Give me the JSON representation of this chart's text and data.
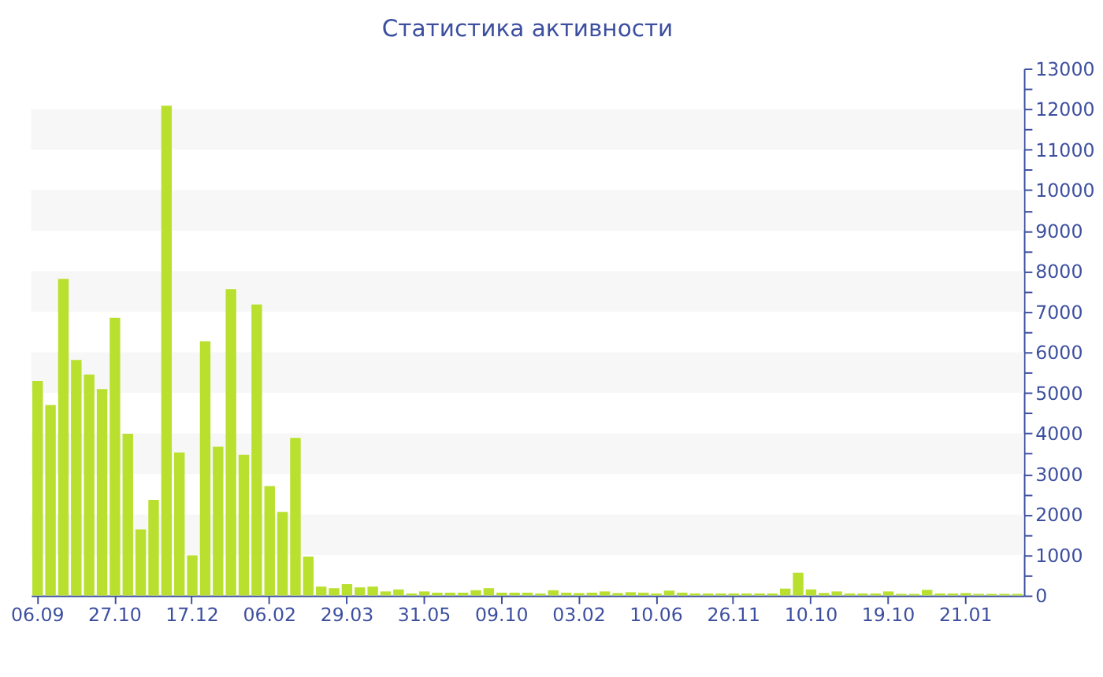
{
  "chart_data": {
    "type": "bar",
    "title": "Статистика активности",
    "categories": [
      "06.09",
      null,
      null,
      null,
      null,
      null,
      "27.10",
      null,
      null,
      null,
      null,
      null,
      "17.12",
      null,
      null,
      null,
      null,
      null,
      "06.02",
      null,
      null,
      null,
      null,
      null,
      "29.03",
      null,
      null,
      null,
      null,
      null,
      "31.05",
      null,
      null,
      null,
      null,
      null,
      "09.10",
      null,
      null,
      null,
      null,
      null,
      "03.02",
      null,
      null,
      null,
      null,
      null,
      "10.06",
      null,
      null,
      null,
      null,
      null,
      "26.11",
      null,
      null,
      null,
      null,
      null,
      "10.10",
      null,
      null,
      null,
      null,
      null,
      "19.10",
      null,
      null,
      null,
      null,
      null,
      "21.01",
      null,
      null,
      null,
      null
    ],
    "values": [
      5290,
      4700,
      7810,
      5810,
      5450,
      5090,
      6850,
      3990,
      1630,
      2360,
      12080,
      3530,
      990,
      6270,
      3670,
      7560,
      3470,
      7180,
      2700,
      2060,
      3890,
      960,
      220,
      180,
      280,
      200,
      220,
      100,
      150,
      50,
      100,
      70,
      70,
      70,
      130,
      180,
      70,
      70,
      70,
      50,
      130,
      70,
      60,
      70,
      100,
      60,
      80,
      70,
      50,
      120,
      70,
      50,
      50,
      50,
      50,
      50,
      50,
      50,
      170,
      560,
      150,
      60,
      100,
      50,
      50,
      50,
      100,
      40,
      40,
      140,
      50,
      50,
      60,
      40,
      40,
      40,
      40
    ],
    "color": "#b9e02f",
    "ylim": [
      0,
      13000
    ],
    "yticks": [
      0,
      {
        "value": 500,
        "label": null
      },
      1000,
      {
        "value": 1500,
        "label": null
      },
      2000,
      {
        "value": 2500,
        "label": null
      },
      3000,
      {
        "value": 3500,
        "label": null
      },
      4000,
      {
        "value": 4500,
        "label": null
      },
      5000,
      {
        "value": 5500,
        "label": null
      },
      6000,
      {
        "value": 6500,
        "label": null
      },
      7000,
      {
        "value": 7500,
        "label": null
      },
      8000,
      {
        "value": 8500,
        "label": null
      },
      9000,
      {
        "value": 9500,
        "label": null
      },
      10000,
      {
        "value": 10500,
        "label": null
      },
      11000,
      {
        "value": 11500,
        "label": null
      },
      12000,
      {
        "value": 12500,
        "label": null
      },
      13000
    ],
    "bands": [
      {
        "axis": "y",
        "from": 1000,
        "to": 2000,
        "color": "#f7f7f7"
      },
      {
        "axis": "y",
        "from": 3000,
        "to": 4000,
        "color": "#f7f7f7"
      },
      {
        "axis": "y",
        "from": 5000,
        "to": 6000,
        "color": "#f7f7f7"
      },
      {
        "axis": "y",
        "from": 7000,
        "to": 8000,
        "color": "#f7f7f7"
      },
      {
        "axis": "y",
        "from": 9000,
        "to": 10000,
        "color": "#f7f7f7"
      },
      {
        "axis": "y",
        "from": 11000,
        "to": 12000,
        "color": "#f7f7f7"
      }
    ]
  }
}
